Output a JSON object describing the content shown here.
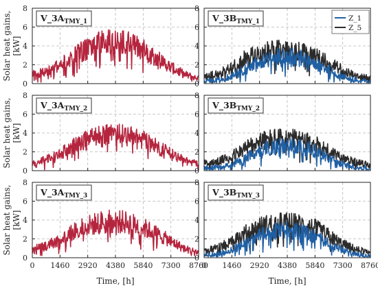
{
  "figure": {
    "ylabel": "Solar heat gains, [kW]",
    "xlabel": "Time, [h]",
    "xticks": [
      "0",
      "1460",
      "2920",
      "4380",
      "5840",
      "7300",
      "8760"
    ],
    "yticks": [
      "0",
      "2",
      "4",
      "6",
      "8"
    ]
  },
  "legend": [
    {
      "name": "Z_1",
      "color": "#1f5fa3"
    },
    {
      "name": "Z_5",
      "color": "#2b2b2b"
    }
  ],
  "colors": {
    "single_series": "#b5253e",
    "z1": "#1f5fa3",
    "z5": "#2b2b2b",
    "grid": "#b8b8b8"
  },
  "chart_data": [
    {
      "type": "line",
      "label_base": "V_3A",
      "label_sub": "TMY_1",
      "xlim": [
        0,
        8760
      ],
      "ylim": [
        0,
        8
      ],
      "grid": true,
      "x": [
        0,
        730,
        1460,
        2190,
        2920,
        3650,
        4380,
        5110,
        5840,
        6570,
        7300,
        8030,
        8760
      ],
      "series": [
        {
          "name": "",
          "values": [
            1.0,
            1.3,
            2.0,
            3.0,
            3.9,
            4.4,
            4.6,
            4.4,
            3.7,
            2.8,
            1.8,
            1.0,
            0.6
          ]
        }
      ]
    },
    {
      "type": "line",
      "label_base": "V_3B",
      "label_sub": "TMY_1",
      "xlim": [
        0,
        8760
      ],
      "ylim": [
        0,
        8
      ],
      "grid": true,
      "legend": "top-right",
      "x": [
        0,
        730,
        1460,
        2190,
        2920,
        3650,
        4380,
        5110,
        5840,
        6570,
        7300,
        8030,
        8760
      ],
      "series": [
        {
          "name": "Z_1",
          "values": [
            0.3,
            0.4,
            0.8,
            1.6,
            2.4,
            2.8,
            3.0,
            2.8,
            2.3,
            1.5,
            0.8,
            0.4,
            0.2
          ]
        },
        {
          "name": "Z_5",
          "values": [
            0.8,
            1.1,
            1.8,
            2.8,
            3.4,
            3.6,
            3.6,
            3.4,
            3.0,
            2.3,
            1.5,
            0.9,
            0.6
          ]
        }
      ]
    },
    {
      "type": "line",
      "label_base": "V_3A",
      "label_sub": "TMY_2",
      "xlim": [
        0,
        8760
      ],
      "ylim": [
        0,
        8
      ],
      "grid": true,
      "x": [
        0,
        730,
        1460,
        2190,
        2920,
        3650,
        4380,
        5110,
        5840,
        6570,
        7300,
        8030,
        8760
      ],
      "series": [
        {
          "name": "",
          "values": [
            0.9,
            1.2,
            1.8,
            2.7,
            3.4,
            3.8,
            3.9,
            3.7,
            3.3,
            2.6,
            1.8,
            1.1,
            0.7
          ]
        }
      ]
    },
    {
      "type": "line",
      "label_base": "V_3B",
      "label_sub": "TMY_2",
      "xlim": [
        0,
        8760
      ],
      "ylim": [
        0,
        8
      ],
      "grid": true,
      "x": [
        0,
        730,
        1460,
        2190,
        2920,
        3650,
        4380,
        5110,
        5840,
        6570,
        7300,
        8030,
        8760
      ],
      "series": [
        {
          "name": "Z_1",
          "values": [
            0.3,
            0.4,
            0.7,
            1.4,
            2.2,
            2.6,
            2.8,
            2.6,
            2.2,
            1.4,
            0.7,
            0.4,
            0.2
          ]
        },
        {
          "name": "Z_5",
          "values": [
            0.8,
            1.0,
            1.6,
            2.5,
            3.2,
            3.5,
            3.5,
            3.3,
            2.9,
            2.2,
            1.4,
            0.9,
            0.6
          ]
        }
      ]
    },
    {
      "type": "line",
      "label_base": "V_3A",
      "label_sub": "TMY_3",
      "xlim": [
        0,
        8760
      ],
      "ylim": [
        0,
        8
      ],
      "grid": true,
      "x": [
        0,
        730,
        1460,
        2190,
        2920,
        3650,
        4380,
        5110,
        5840,
        6570,
        7300,
        8030,
        8760
      ],
      "series": [
        {
          "name": "",
          "values": [
            0.9,
            1.3,
            2.0,
            2.9,
            3.5,
            3.9,
            4.0,
            3.8,
            3.3,
            2.6,
            1.8,
            1.0,
            0.6
          ]
        }
      ]
    },
    {
      "type": "line",
      "label_base": "V_3B",
      "label_sub": "TMY_3",
      "xlim": [
        0,
        8760
      ],
      "ylim": [
        0,
        8
      ],
      "grid": true,
      "x": [
        0,
        730,
        1460,
        2190,
        2920,
        3650,
        4380,
        5110,
        5840,
        6570,
        7300,
        8030,
        8760
      ],
      "series": [
        {
          "name": "Z_1",
          "values": [
            0.3,
            0.4,
            0.8,
            1.6,
            2.4,
            2.8,
            3.0,
            2.8,
            2.3,
            1.5,
            0.8,
            0.4,
            0.2
          ]
        },
        {
          "name": "Z_5",
          "values": [
            0.8,
            1.1,
            1.7,
            2.7,
            3.4,
            3.7,
            3.8,
            3.6,
            3.2,
            2.4,
            1.5,
            0.9,
            0.6
          ]
        }
      ]
    }
  ]
}
